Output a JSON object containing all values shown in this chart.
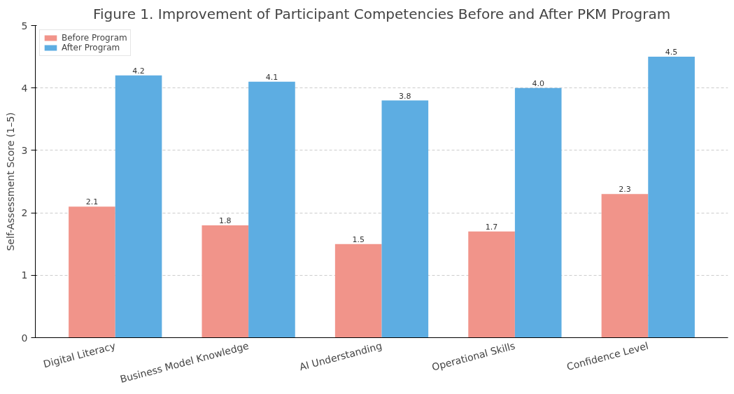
{
  "chart_data": {
    "type": "bar",
    "title": "Figure 1. Improvement of Participant Competencies Before and After PKM Program",
    "ylabel": "Self-Assessment Score (1–5)",
    "categories": [
      "Digital Literacy",
      "Business Model Knowledge",
      "AI Understanding",
      "Operational Skills",
      "Confidence Level"
    ],
    "series": [
      {
        "name": "Before Program",
        "color": "#f1948a",
        "values": [
          2.1,
          1.8,
          1.5,
          1.7,
          2.3
        ],
        "value_labels": [
          "2.1",
          "1.8",
          "1.5",
          "1.7",
          "2.3"
        ]
      },
      {
        "name": "After Program",
        "color": "#5dade2",
        "values": [
          4.2,
          4.1,
          3.8,
          4.0,
          4.5
        ],
        "value_labels": [
          "4.2",
          "4.1",
          "3.8",
          "4.0",
          "4.5"
        ]
      }
    ],
    "ylim": [
      0,
      5
    ],
    "yticks": [
      0,
      1,
      2,
      3,
      4,
      5
    ],
    "grid": "y",
    "legend": "top left"
  }
}
